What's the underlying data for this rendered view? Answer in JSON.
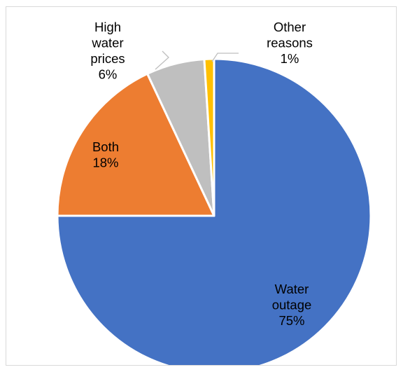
{
  "chart_data": {
    "type": "pie",
    "title": "",
    "start_angle_deg": 0,
    "direction": "clockwise",
    "slices": [
      {
        "label": "Water outage",
        "label_lines": [
          "Water",
          "outage",
          "75%"
        ],
        "value": 75,
        "percent_label": "75%",
        "color": "#4472c4",
        "label_placement": "inside"
      },
      {
        "label": "Both",
        "label_lines": [
          "Both",
          "18%"
        ],
        "value": 18,
        "percent_label": "18%",
        "color": "#ed7d31",
        "label_placement": "inside"
      },
      {
        "label": "High water prices",
        "label_lines": [
          "High",
          "water",
          "prices",
          "6%"
        ],
        "value": 6,
        "percent_label": "6%",
        "color": "#bfbfbf",
        "label_placement": "outside-left"
      },
      {
        "label": "Other reasons",
        "label_lines": [
          "Other",
          "reasons",
          "1%"
        ],
        "value": 1,
        "percent_label": "1%",
        "color": "#ffc000",
        "label_placement": "outside-right"
      }
    ],
    "slice_border_color": "#ffffff",
    "leader_line_color": "#bfbfbf",
    "legend": "none"
  }
}
